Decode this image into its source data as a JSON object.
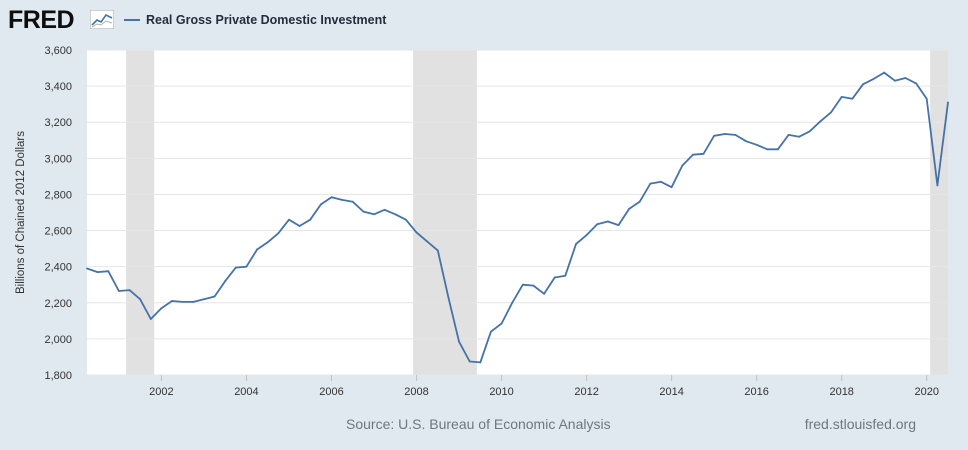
{
  "header": {
    "logo_text": "FRED",
    "logo_icon": "line-chart-logo-icon"
  },
  "colors": {
    "background": "#e1e9f0",
    "plot_background": "#ffffff",
    "series_line": "#4572a7",
    "recession": "#e1e1e1",
    "grid": "#e6e6e6"
  },
  "chart_data": {
    "type": "line",
    "title": "",
    "ylabel": "Billions of Chained 2012 Dollars",
    "xlabel": "",
    "xlim": [
      2000.25,
      2020.5
    ],
    "ylim": [
      1800,
      3600
    ],
    "x_ticks": [
      "2002",
      "2004",
      "2006",
      "2008",
      "2010",
      "2012",
      "2014",
      "2016",
      "2018",
      "2020"
    ],
    "y_ticks": [
      "1,800",
      "2,000",
      "2,200",
      "2,400",
      "2,600",
      "2,800",
      "3,000",
      "3,200",
      "3,400",
      "3,600"
    ],
    "grid": true,
    "legend": "top-left",
    "recessions": [
      {
        "start": 2001.17,
        "end": 2001.83
      },
      {
        "start": 2007.92,
        "end": 2009.42
      },
      {
        "start": 2020.08,
        "end": 2020.5
      }
    ],
    "series": [
      {
        "name": "Real Gross Private Domestic Investment",
        "x": [
          2000.25,
          2000.5,
          2000.75,
          2001.0,
          2001.25,
          2001.5,
          2001.75,
          2002.0,
          2002.25,
          2002.5,
          2002.75,
          2003.0,
          2003.25,
          2003.5,
          2003.75,
          2004.0,
          2004.25,
          2004.5,
          2004.75,
          2005.0,
          2005.25,
          2005.5,
          2005.75,
          2006.0,
          2006.25,
          2006.5,
          2006.75,
          2007.0,
          2007.25,
          2007.5,
          2007.75,
          2008.0,
          2008.25,
          2008.5,
          2008.75,
          2009.0,
          2009.25,
          2009.5,
          2009.75,
          2010.0,
          2010.25,
          2010.5,
          2010.75,
          2011.0,
          2011.25,
          2011.5,
          2011.75,
          2012.0,
          2012.25,
          2012.5,
          2012.75,
          2013.0,
          2013.25,
          2013.5,
          2013.75,
          2014.0,
          2014.25,
          2014.5,
          2014.75,
          2015.0,
          2015.25,
          2015.5,
          2015.75,
          2016.0,
          2016.25,
          2016.5,
          2016.75,
          2017.0,
          2017.25,
          2017.5,
          2017.75,
          2018.0,
          2018.25,
          2018.5,
          2018.75,
          2019.0,
          2019.25,
          2019.5,
          2019.75,
          2020.0,
          2020.25,
          2020.5
        ],
        "values": [
          2390,
          2370,
          2375,
          2265,
          2270,
          2220,
          2110,
          2170,
          2210,
          2205,
          2205,
          2220,
          2235,
          2320,
          2395,
          2400,
          2495,
          2535,
          2585,
          2660,
          2625,
          2660,
          2745,
          2785,
          2770,
          2760,
          2705,
          2690,
          2715,
          2690,
          2660,
          2590,
          2540,
          2490,
          2230,
          1985,
          1875,
          1870,
          2040,
          2085,
          2200,
          2300,
          2295,
          2250,
          2340,
          2350,
          2525,
          2575,
          2635,
          2650,
          2630,
          2720,
          2760,
          2860,
          2870,
          2840,
          2960,
          3020,
          3025,
          3125,
          3135,
          3130,
          3095,
          3075,
          3050,
          3050,
          3130,
          3120,
          3150,
          3205,
          3255,
          3340,
          3330,
          3410,
          3440,
          3475,
          3430,
          3445,
          3415,
          3330,
          2850,
          3310
        ]
      }
    ]
  },
  "footer": {
    "source": "Source: U.S. Bureau of Economic Analysis",
    "url": "fred.stlouisfed.org"
  }
}
